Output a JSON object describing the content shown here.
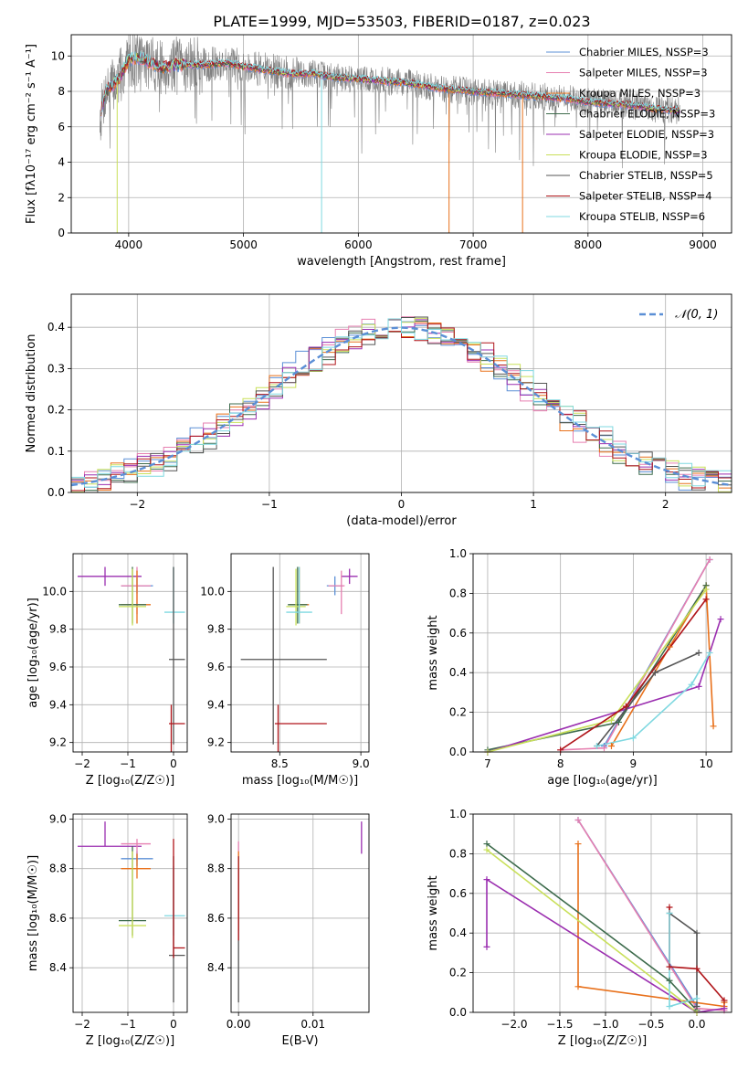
{
  "figure": {
    "title": "PLATE=1999, MJD=53503, FIBERID=0187, z=0.023"
  },
  "colors": {
    "chabrier_miles": "#5b8fd6",
    "salpeter_miles": "#e67fb0",
    "kroupa_miles": "#e8701a",
    "chabrier_elodie": "#3d6b4c",
    "salpeter_elodie": "#9b2fb0",
    "kroupa_elodie": "#c9e05a",
    "chabrier_stelib": "#555555",
    "salpeter_stelib": "#b0151a",
    "kroupa_stelib": "#7fd8e0",
    "data_gray": "#808080",
    "normal_curve": "#5b8fd6"
  },
  "chart_data": [
    {
      "type": "line",
      "title": "PLATE=1999, MJD=53503, FIBERID=0187, z=0.023",
      "xlabel": "wavelength [Angstrom, rest frame]",
      "ylabel": "Flux [fλ10⁻¹⁷ erg cm⁻² s⁻¹ A⁻¹]",
      "xlim": [
        3500,
        9250
      ],
      "ylim": [
        0,
        11.2
      ],
      "xticks": [
        "4000",
        "5000",
        "6000",
        "7000",
        "8000",
        "9000"
      ],
      "yticks": [
        "0",
        "2",
        "4",
        "6",
        "8",
        "10"
      ],
      "legend_placement": "upper-right",
      "legend": [
        "Chabrier MILES, NSSP=3",
        "Salpeter MILES, NSSP=3",
        "Kroupa MILES, NSSP=3",
        "Chabrier ELODIE, NSSP=3",
        "Salpeter ELODIE, NSSP=3",
        "Kroupa ELODIE, NSSP=3",
        "Chabrier STELIB, NSSP=5",
        "Salpeter STELIB, NSSP=4",
        "Kroupa STELIB, NSSP=6"
      ],
      "continuum": {
        "x": [
          3750,
          3800,
          3900,
          3950,
          4000,
          4100,
          4200,
          4300,
          4400,
          4500,
          4700,
          4850,
          5000,
          5200,
          5400,
          5600,
          5800,
          6000,
          6200,
          6400,
          6600,
          6800,
          7000,
          7200,
          7400,
          7600,
          7800,
          8000,
          8200,
          8400,
          8600,
          8800
        ],
        "y": [
          6.5,
          8.0,
          8.6,
          9.1,
          9.8,
          9.9,
          9.6,
          9.3,
          9.5,
          9.5,
          9.5,
          9.6,
          9.4,
          9.2,
          9.0,
          9.0,
          8.8,
          8.7,
          8.6,
          8.5,
          8.3,
          8.1,
          8.0,
          7.9,
          7.8,
          7.7,
          7.6,
          7.4,
          7.3,
          7.2,
          7.0,
          6.9
        ]
      },
      "model_drops": [
        {
          "x": 3900,
          "to": 0,
          "model": "kroupa_elodie"
        },
        {
          "x": 5680,
          "to": 0,
          "model": "kroupa_stelib"
        },
        {
          "x": 6790,
          "to": 0,
          "model": "kroupa_miles"
        },
        {
          "x": 7430,
          "to": 0,
          "model": "kroupa_miles"
        }
      ]
    },
    {
      "type": "line",
      "xlabel": "(data-model)/error",
      "ylabel": "Normed distribution",
      "xlim": [
        -2.5,
        2.5
      ],
      "ylim": [
        0,
        0.48
      ],
      "xticks": [
        "−2",
        "−1",
        "0",
        "1",
        "2"
      ],
      "yticks": [
        "0.0",
        "0.1",
        "0.2",
        "0.3",
        "0.4"
      ],
      "legend_placement": "upper-right",
      "legend": [
        "𝒩(0, 1)"
      ],
      "series": [
        {
          "name": "Chabrier MILES",
          "color": "chabrier_miles"
        },
        {
          "name": "Salpeter MILES",
          "color": "salpeter_miles"
        },
        {
          "name": "Kroupa MILES",
          "color": "kroupa_miles"
        },
        {
          "name": "Chabrier ELODIE",
          "color": "chabrier_elodie"
        },
        {
          "name": "Salpeter ELODIE",
          "color": "salpeter_elodie"
        },
        {
          "name": "Kroupa ELODIE",
          "color": "kroupa_elodie"
        },
        {
          "name": "Chabrier STELIB",
          "color": "chabrier_stelib"
        },
        {
          "name": "Salpeter STELIB",
          "color": "salpeter_stelib"
        },
        {
          "name": "Kroupa STELIB",
          "color": "kroupa_stelib"
        }
      ],
      "bin_width": 0.1,
      "reference_curve": {
        "name": "𝒩(0, 1)",
        "mu": 0,
        "sigma": 1,
        "style": "dashed"
      }
    },
    {
      "type": "scatter",
      "xlabel": "Z [log₁₀(Z/Z☉)]",
      "ylabel": "age  [log₁₀(age/yr)]",
      "xlim": [
        -2.2,
        0.3
      ],
      "ylim": [
        9.15,
        10.2
      ],
      "xticks": [
        "−2",
        "−1",
        "0"
      ],
      "yticks": [
        "9.2",
        "9.4",
        "9.6",
        "9.8",
        "10.0"
      ],
      "errorbars": [
        {
          "model": "salpeter_elodie",
          "x": -1.5,
          "xerr": [
            0.6,
            0.8
          ],
          "y": 10.08,
          "yerr": [
            0.05,
            0.05
          ]
        },
        {
          "model": "chabrier_miles",
          "x": -0.8,
          "xerr": [
            0.35,
            0.35
          ],
          "y": 10.03,
          "yerr": [
            0.04,
            0.04
          ]
        },
        {
          "model": "salpeter_miles",
          "x": -0.8,
          "xerr": [
            0.35,
            0.3
          ],
          "y": 10.03,
          "yerr": [
            0.15,
            0.1
          ]
        },
        {
          "model": "kroupa_miles",
          "x": -0.8,
          "xerr": [
            0.35,
            0.3
          ],
          "y": 9.93,
          "yerr": [
            0.1,
            0.18
          ]
        },
        {
          "model": "chabrier_elodie",
          "x": -0.9,
          "xerr": [
            0.3,
            0.3
          ],
          "y": 9.93,
          "yerr": [
            0.1,
            0.2
          ]
        },
        {
          "model": "kroupa_elodie",
          "x": -0.9,
          "xerr": [
            0.3,
            0.3
          ],
          "y": 9.92,
          "yerr": [
            0.1,
            0.2
          ]
        },
        {
          "model": "kroupa_stelib",
          "x": 0.0,
          "xerr": [
            0.2,
            0.25
          ],
          "y": 9.89,
          "yerr": [
            0.06,
            0.24
          ]
        },
        {
          "model": "chabrier_stelib",
          "x": 0.0,
          "xerr": [
            0.1,
            0.25
          ],
          "y": 9.64,
          "yerr": [
            0.45,
            0.49
          ]
        },
        {
          "model": "salpeter_stelib",
          "x": -0.05,
          "xerr": [
            0.05,
            0.3
          ],
          "y": 9.3,
          "yerr": [
            0.8,
            0.1
          ]
        }
      ]
    },
    {
      "type": "scatter",
      "xlabel": "mass [log₁₀(M/M☉)]",
      "ylabel": "",
      "xlim": [
        8.2,
        9.05
      ],
      "ylim": [
        9.15,
        10.2
      ],
      "xticks": [
        "8.5",
        "9.0"
      ],
      "yticks": [
        "9.2",
        "9.4",
        "9.6",
        "9.8",
        "10.0"
      ],
      "errorbars": [
        {
          "model": "salpeter_elodie",
          "x": 8.93,
          "xerr": [
            0.05,
            0.05
          ],
          "y": 10.08,
          "yerr": [
            0.04,
            0.04
          ]
        },
        {
          "model": "chabrier_miles",
          "x": 8.84,
          "xerr": [
            0.05,
            0.05
          ],
          "y": 10.03,
          "yerr": [
            0.05,
            0.05
          ]
        },
        {
          "model": "salpeter_miles",
          "x": 8.88,
          "xerr": [
            0.08,
            0.02
          ],
          "y": 10.03,
          "yerr": [
            0.15,
            0.08
          ]
        },
        {
          "model": "kroupa_miles",
          "x": 8.62,
          "xerr": [
            0.06,
            0.06
          ],
          "y": 9.93,
          "yerr": [
            0.1,
            0.2
          ]
        },
        {
          "model": "chabrier_elodie",
          "x": 8.61,
          "xerr": [
            0.06,
            0.06
          ],
          "y": 9.93,
          "yerr": [
            0.1,
            0.2
          ]
        },
        {
          "model": "kroupa_elodie",
          "x": 8.6,
          "xerr": [
            0.06,
            0.06
          ],
          "y": 9.92,
          "yerr": [
            0.1,
            0.2
          ]
        },
        {
          "model": "kroupa_stelib",
          "x": 8.62,
          "xerr": [
            0.08,
            0.08
          ],
          "y": 9.89,
          "yerr": [
            0.06,
            0.24
          ]
        },
        {
          "model": "chabrier_stelib",
          "x": 8.46,
          "xerr": [
            0.2,
            0.33
          ],
          "y": 9.64,
          "yerr": [
            0.45,
            0.49
          ]
        },
        {
          "model": "salpeter_stelib",
          "x": 8.49,
          "xerr": [
            0.02,
            0.3
          ],
          "y": 9.3,
          "yerr": [
            0.8,
            0.1
          ]
        }
      ]
    },
    {
      "type": "line",
      "xlabel": "age  [log₁₀(age/yr)]",
      "ylabel": "mass weight",
      "xlim": [
        6.8,
        10.35
      ],
      "ylim": [
        0,
        1.0
      ],
      "xticks": [
        "7",
        "8",
        "9",
        "10"
      ],
      "yticks": [
        "0.0",
        "0.2",
        "0.4",
        "0.6",
        "0.8",
        "1.0"
      ],
      "series": [
        {
          "model": "chabrier_miles",
          "x": [
            8.6,
            10.05
          ],
          "y": [
            0.03,
            0.97
          ]
        },
        {
          "model": "salpeter_miles",
          "x": [
            8.0,
            8.6,
            10.05
          ],
          "y": [
            0.01,
            0.02,
            0.97
          ]
        },
        {
          "model": "kroupa_miles",
          "x": [
            8.7,
            9.5,
            10.0,
            10.1
          ],
          "y": [
            0.03,
            0.53,
            0.84,
            0.13
          ]
        },
        {
          "model": "chabrier_elodie",
          "x": [
            7.0,
            8.8,
            10.0
          ],
          "y": [
            0.01,
            0.15,
            0.84
          ]
        },
        {
          "model": "salpeter_elodie",
          "x": [
            7.0,
            9.9,
            10.2
          ],
          "y": [
            0.0,
            0.33,
            0.67
          ]
        },
        {
          "model": "kroupa_elodie",
          "x": [
            7.0,
            8.7,
            10.0
          ],
          "y": [
            0.0,
            0.16,
            0.82
          ]
        },
        {
          "model": "chabrier_stelib",
          "x": [
            8.5,
            9.3,
            9.9
          ],
          "y": [
            0.03,
            0.4,
            0.5
          ]
        },
        {
          "model": "salpeter_stelib",
          "x": [
            8.0,
            8.9,
            10.0
          ],
          "y": [
            0.01,
            0.23,
            0.77
          ]
        },
        {
          "model": "kroupa_stelib",
          "x": [
            8.5,
            9.0,
            9.8,
            10.05
          ],
          "y": [
            0.03,
            0.07,
            0.34,
            0.5
          ]
        }
      ]
    },
    {
      "type": "scatter",
      "xlabel": "Z [log₁₀(Z/Z☉)]",
      "ylabel": "mass [log₁₀(M/M☉)]",
      "xlim": [
        -2.2,
        0.3
      ],
      "ylim": [
        8.22,
        9.02
      ],
      "xticks": [
        "−2",
        "−1",
        "0"
      ],
      "yticks": [
        "8.4",
        "8.6",
        "8.8",
        "9.0"
      ],
      "errorbars": [
        {
          "model": "salpeter_elodie",
          "x": -1.5,
          "xerr": [
            0.6,
            0.8
          ],
          "y": 8.89,
          "yerr": [
            0.0,
            0.1
          ]
        },
        {
          "model": "chabrier_miles",
          "x": -0.8,
          "xerr": [
            0.35,
            0.35
          ],
          "y": 8.84,
          "yerr": [
            0.03,
            0.03
          ]
        },
        {
          "model": "salpeter_miles",
          "x": -0.8,
          "xerr": [
            0.35,
            0.3
          ],
          "y": 8.9,
          "yerr": [
            0.07,
            0.02
          ]
        },
        {
          "model": "kroupa_miles",
          "x": -0.8,
          "xerr": [
            0.35,
            0.3
          ],
          "y": 8.8,
          "yerr": [
            0.04,
            0.06
          ]
        },
        {
          "model": "chabrier_elodie",
          "x": -0.9,
          "xerr": [
            0.3,
            0.3
          ],
          "y": 8.59,
          "yerr": [
            0.06,
            0.3
          ]
        },
        {
          "model": "kroupa_elodie",
          "x": -0.9,
          "xerr": [
            0.3,
            0.3
          ],
          "y": 8.57,
          "yerr": [
            0.05,
            0.3
          ]
        },
        {
          "model": "kroupa_stelib",
          "x": 0.0,
          "xerr": [
            0.2,
            0.25
          ],
          "y": 8.61,
          "yerr": [
            0.08,
            0.2
          ]
        },
        {
          "model": "chabrier_stelib",
          "x": 0.0,
          "xerr": [
            0.1,
            0.25
          ],
          "y": 8.45,
          "yerr": [
            0.19,
            0.4
          ]
        },
        {
          "model": "salpeter_stelib",
          "x": 0.0,
          "xerr": [
            0.0,
            0.25
          ],
          "y": 8.48,
          "yerr": [
            0.04,
            0.44
          ]
        }
      ]
    },
    {
      "type": "scatter",
      "xlabel": "E(B-V)",
      "ylabel": "",
      "xlim": [
        -0.001,
        0.0175
      ],
      "ylim": [
        8.22,
        9.02
      ],
      "xticks": [
        "0.00",
        "0.01"
      ],
      "yticks": [
        "8.4",
        "8.6",
        "8.8",
        "9.0"
      ],
      "errorbars": [
        {
          "model": "salpeter_elodie",
          "x": 0.0165,
          "y": 8.93,
          "yerr": [
            0.07,
            0.06
          ]
        },
        {
          "model": "salpeter_miles",
          "x": 0.0,
          "y": 8.85,
          "yerr": [
            0.07,
            0.06
          ]
        },
        {
          "model": "kroupa_miles",
          "x": 0.0,
          "y": 8.8,
          "yerr": [
            0.07,
            0.07
          ]
        },
        {
          "model": "chabrier_elodie",
          "x": 0.0,
          "y": 8.7,
          "yerr": [
            0.15,
            0.15
          ]
        },
        {
          "model": "kroupa_elodie",
          "x": 0.0,
          "y": 8.7,
          "yerr": [
            0.15,
            0.15
          ]
        },
        {
          "model": "chabrier_stelib",
          "x": 0.0,
          "y": 8.5,
          "yerr": [
            0.24,
            0.3
          ]
        },
        {
          "model": "salpeter_stelib",
          "x": 0.0,
          "y": 8.55,
          "yerr": [
            0.04,
            0.3
          ]
        }
      ]
    },
    {
      "type": "line",
      "xlabel": "Z [log₁₀(Z/Z☉)]",
      "ylabel": "mass weight",
      "xlim": [
        -2.45,
        0.38
      ],
      "ylim": [
        0,
        1.0
      ],
      "xticks": [
        "−2.0",
        "−1.5",
        "−1.0",
        "−0.5",
        "0.0"
      ],
      "yticks": [
        "0.0",
        "0.2",
        "0.4",
        "0.6",
        "0.8",
        "1.0"
      ],
      "series": [
        {
          "model": "chabrier_miles",
          "x": [
            -1.3,
            0.0
          ],
          "y": [
            0.97,
            0.03
          ]
        },
        {
          "model": "salpeter_miles",
          "x": [
            -1.3,
            0.0,
            0.3
          ],
          "y": [
            0.97,
            0.02,
            0.01
          ]
        },
        {
          "model": "kroupa_miles",
          "x": [
            -1.3,
            -1.3,
            0.3,
            0.3
          ],
          "y": [
            0.85,
            0.13,
            0.03,
            0.05
          ]
        },
        {
          "model": "chabrier_elodie",
          "x": [
            -2.3,
            -0.3,
            0.0
          ],
          "y": [
            0.85,
            0.16,
            0.01
          ]
        },
        {
          "model": "salpeter_elodie",
          "x": [
            -2.3,
            -2.3,
            0.0,
            0.3
          ],
          "y": [
            0.33,
            0.67,
            0.0,
            0.02
          ]
        },
        {
          "model": "kroupa_elodie",
          "x": [
            -2.3,
            0.0
          ],
          "y": [
            0.82,
            0.0
          ]
        },
        {
          "model": "chabrier_stelib",
          "x": [
            -0.3,
            0.0,
            0.0
          ],
          "y": [
            0.5,
            0.4,
            0.03
          ]
        },
        {
          "model": "salpeter_stelib",
          "x": [
            -0.3,
            -0.3,
            0.0,
            0.3
          ],
          "y": [
            0.53,
            0.23,
            0.22,
            0.06
          ]
        },
        {
          "model": "kroupa_stelib",
          "x": [
            -0.3,
            -0.3,
            0.0
          ],
          "y": [
            0.5,
            0.03,
            0.07
          ]
        }
      ]
    }
  ]
}
